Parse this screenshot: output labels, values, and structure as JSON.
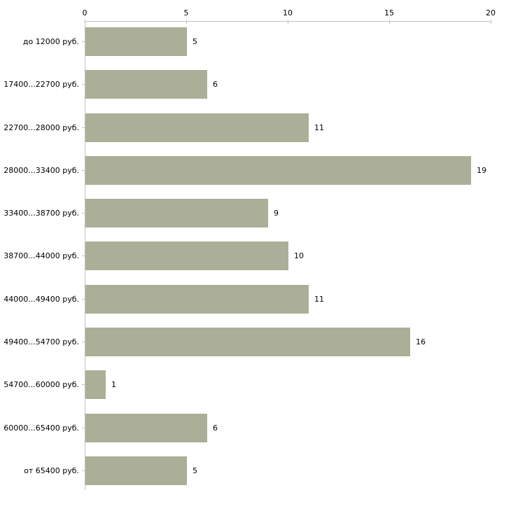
{
  "chart_data": {
    "type": "bar",
    "orientation": "horizontal",
    "title": "",
    "xlabel": "",
    "ylabel": "",
    "categories": [
      "до 12000 руб.",
      "17400...22700 руб.",
      "22700...28000 руб.",
      "28000...33400 руб.",
      "33400...38700 руб.",
      "38700...44000 руб.",
      "44000...49400 руб.",
      "49400...54700 руб.",
      "54700...60000 руб.",
      "60000...65400 руб.",
      "от 65400 руб."
    ],
    "values": [
      5,
      6,
      11,
      19,
      9,
      10,
      11,
      16,
      1,
      6,
      5
    ],
    "x_ticks": [
      0,
      5,
      10,
      15,
      20
    ],
    "xlim": [
      0,
      20
    ],
    "grid": false,
    "legend": null,
    "value_labels_shown": true,
    "axis_position": "top",
    "colors": {
      "bar": "#abaf97",
      "axis_line": "#c0c0c0",
      "tick": "#c6c69c",
      "text": "#000000",
      "background": "#ffffff"
    }
  }
}
